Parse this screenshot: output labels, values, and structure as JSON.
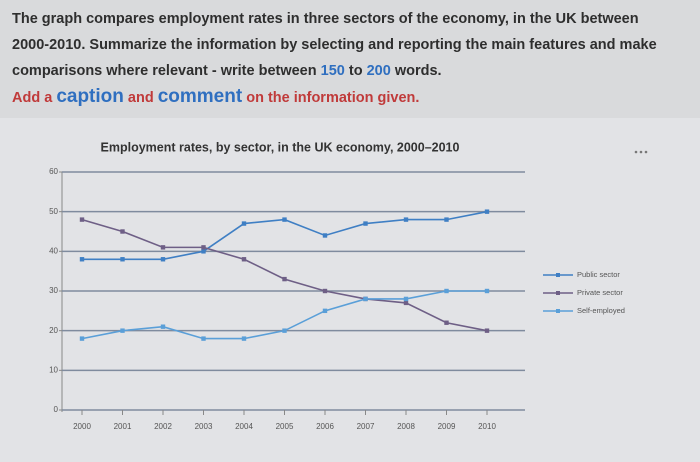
{
  "prompt": {
    "task": [
      "The graph compares employment rates in three sectors of the economy, in the UK between 2000-2010. Summarize the information by selecting and reporting the main features and make comparisons where relevant - write between ",
      "150",
      " to ",
      "200",
      " words."
    ],
    "note": [
      "Add a ",
      "caption",
      " and ",
      "comment",
      " on the information given."
    ]
  },
  "chart_data": {
    "type": "line",
    "title": "Employment rates, by sector, in the UK economy, 2000–2010",
    "categories": [
      "2000",
      "2001",
      "2002",
      "2003",
      "2004",
      "2005",
      "2006",
      "2007",
      "2008",
      "2009",
      "2010"
    ],
    "series": [
      {
        "name": "Public sector",
        "color": "#3f7fc4",
        "values": [
          38,
          38,
          38,
          40,
          47,
          48,
          44,
          47,
          48,
          48,
          50
        ]
      },
      {
        "name": "Private sector",
        "color": "#6e5f86",
        "values": [
          48,
          45,
          41,
          41,
          38,
          33,
          30,
          28,
          27,
          22,
          20
        ]
      },
      {
        "name": "Self-employed",
        "color": "#5a9fd8",
        "values": [
          18,
          20,
          21,
          18,
          18,
          20,
          25,
          28,
          28,
          30,
          30
        ]
      }
    ],
    "ylim": [
      0,
      60
    ],
    "yticks": [
      0,
      10,
      20,
      30,
      40,
      50,
      60
    ],
    "grid": true,
    "legend": "right"
  }
}
